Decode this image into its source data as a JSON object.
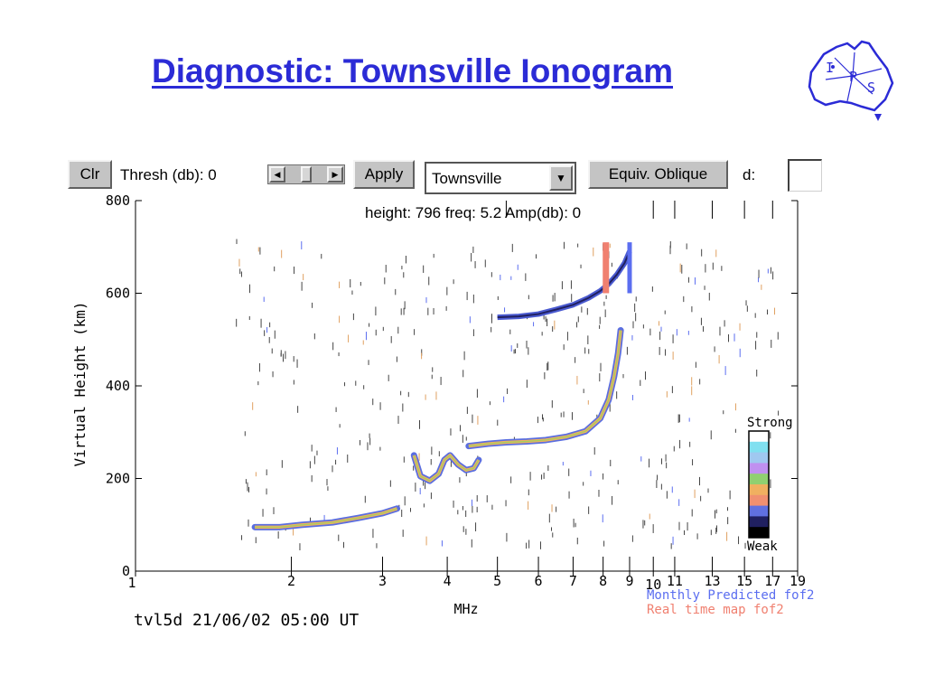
{
  "title": "Diagnostic: Townsville Ionogram",
  "logo": {
    "letters": [
      "I",
      "P",
      "S"
    ]
  },
  "toolbar": {
    "clr_label": "Clr",
    "thresh_label": "Thresh (db): 0",
    "slider_value": 0,
    "apply_label": "Apply",
    "station": "Townsville",
    "oblique_label": "Equiv. Oblique",
    "d_label": "d:",
    "d_value": ""
  },
  "readout": "height: 796 freq: 5.2 Amp(db): 0",
  "chart_data": {
    "type": "scatter",
    "title": "",
    "xlabel": "MHz",
    "ylabel": "Virtual Height (km)",
    "x_scale": "log",
    "xlim": [
      1,
      19
    ],
    "ylim": [
      0,
      800
    ],
    "x_ticks": [
      "1",
      "2",
      "3",
      "4",
      "5",
      "6",
      "7",
      "8",
      "9",
      "10",
      "11",
      "13",
      "15",
      "17",
      "19"
    ],
    "y_ticks": [
      "0",
      "200",
      "400",
      "600",
      "800"
    ],
    "legend": {
      "scale_top": "Strong",
      "scale_bottom": "Weak",
      "colors": [
        "#ffffff",
        "#80e0f0",
        "#a0c8f0",
        "#c090f0",
        "#90d070",
        "#f0b060",
        "#f09070",
        "#6070e0",
        "#202060",
        "#000000"
      ]
    },
    "annotations": [
      "Monthly Predicted fof2",
      "Real time map fof2"
    ],
    "annotation_colors": [
      "#5b6ef0",
      "#f08070"
    ],
    "footer": "tvl5d 21/06/02 05:00 UT",
    "series": [
      {
        "name": "E trace",
        "x": [
          1.7,
          1.9,
          2.1,
          2.4,
          2.7,
          3.0,
          3.2
        ],
        "y": [
          95,
          95,
          100,
          105,
          115,
          125,
          135
        ]
      },
      {
        "name": "F1 cusp",
        "x": [
          3.45,
          3.55,
          3.7,
          3.85,
          3.95,
          4.05,
          4.2,
          4.35,
          4.5,
          4.6
        ],
        "y": [
          250,
          205,
          195,
          210,
          240,
          250,
          230,
          218,
          222,
          240
        ]
      },
      {
        "name": "F2 trace",
        "x": [
          4.4,
          4.8,
          5.2,
          5.7,
          6.2,
          6.8,
          7.4,
          7.9,
          8.2,
          8.4,
          8.55,
          8.65
        ],
        "y": [
          270,
          275,
          278,
          280,
          283,
          290,
          302,
          330,
          370,
          420,
          470,
          520
        ]
      },
      {
        "name": "F2 second hop",
        "x": [
          5.0,
          5.5,
          6.0,
          6.5,
          7.0,
          7.5,
          7.9,
          8.2,
          8.5,
          8.8,
          9.0
        ],
        "y": [
          548,
          550,
          555,
          565,
          575,
          590,
          605,
          620,
          640,
          665,
          690
        ]
      },
      {
        "name": "Monthly Predicted fof2",
        "x": [
          9.0,
          9.0
        ],
        "y": [
          600,
          710
        ]
      },
      {
        "name": "Real time map fof2",
        "x": [
          8.1,
          8.1
        ],
        "y": [
          600,
          710
        ]
      }
    ]
  }
}
